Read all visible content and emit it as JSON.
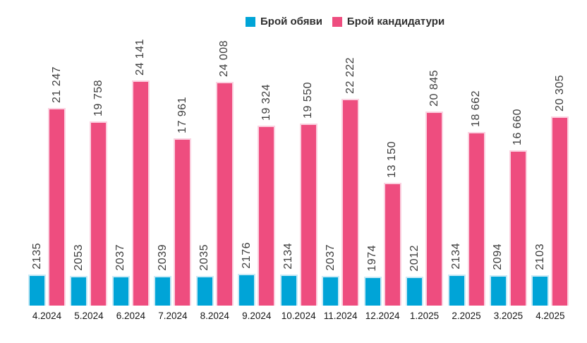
{
  "legend": [
    {
      "label": "Брой обяви",
      "color": "#00a4d7"
    },
    {
      "label": "Брой кандидатури",
      "color": "#ee4d7f"
    }
  ],
  "chart_data": {
    "type": "bar",
    "title": "",
    "xlabel": "",
    "ylabel": "",
    "grid": false,
    "legend_position": "top",
    "value_labels": "rotated-90-above-bars",
    "categories": [
      "4.2024",
      "5.2024",
      "6.2024",
      "7.2024",
      "8.2024",
      "9.2024",
      "10.2024",
      "11.2024",
      "12.2024",
      "1.2025",
      "2.2025",
      "3.2025",
      "4.2025"
    ],
    "series": [
      {
        "name": "Брой обяви",
        "color": "#00a4d7",
        "values": [
          2135,
          2053,
          2037,
          2039,
          2035,
          2176,
          2134,
          2037,
          1974,
          2012,
          2134,
          2094,
          2103
        ],
        "labels": [
          "2135",
          "2053",
          "2037",
          "2039",
          "2035",
          "2176",
          "2134",
          "2037",
          "1974",
          "2012",
          "2134",
          "2094",
          "2103"
        ]
      },
      {
        "name": "Брой кандидатури",
        "color": "#ee4d7f",
        "values": [
          21247,
          19758,
          24141,
          17961,
          24008,
          19324,
          19550,
          22222,
          13150,
          20845,
          18662,
          16660,
          20305
        ],
        "labels": [
          "21 247",
          "19 758",
          "24 141",
          "17 961",
          "24 008",
          "19 324",
          "19 550",
          "22 222",
          "13 150",
          "20 845",
          "18 662",
          "16 660",
          "20 305"
        ]
      }
    ]
  }
}
